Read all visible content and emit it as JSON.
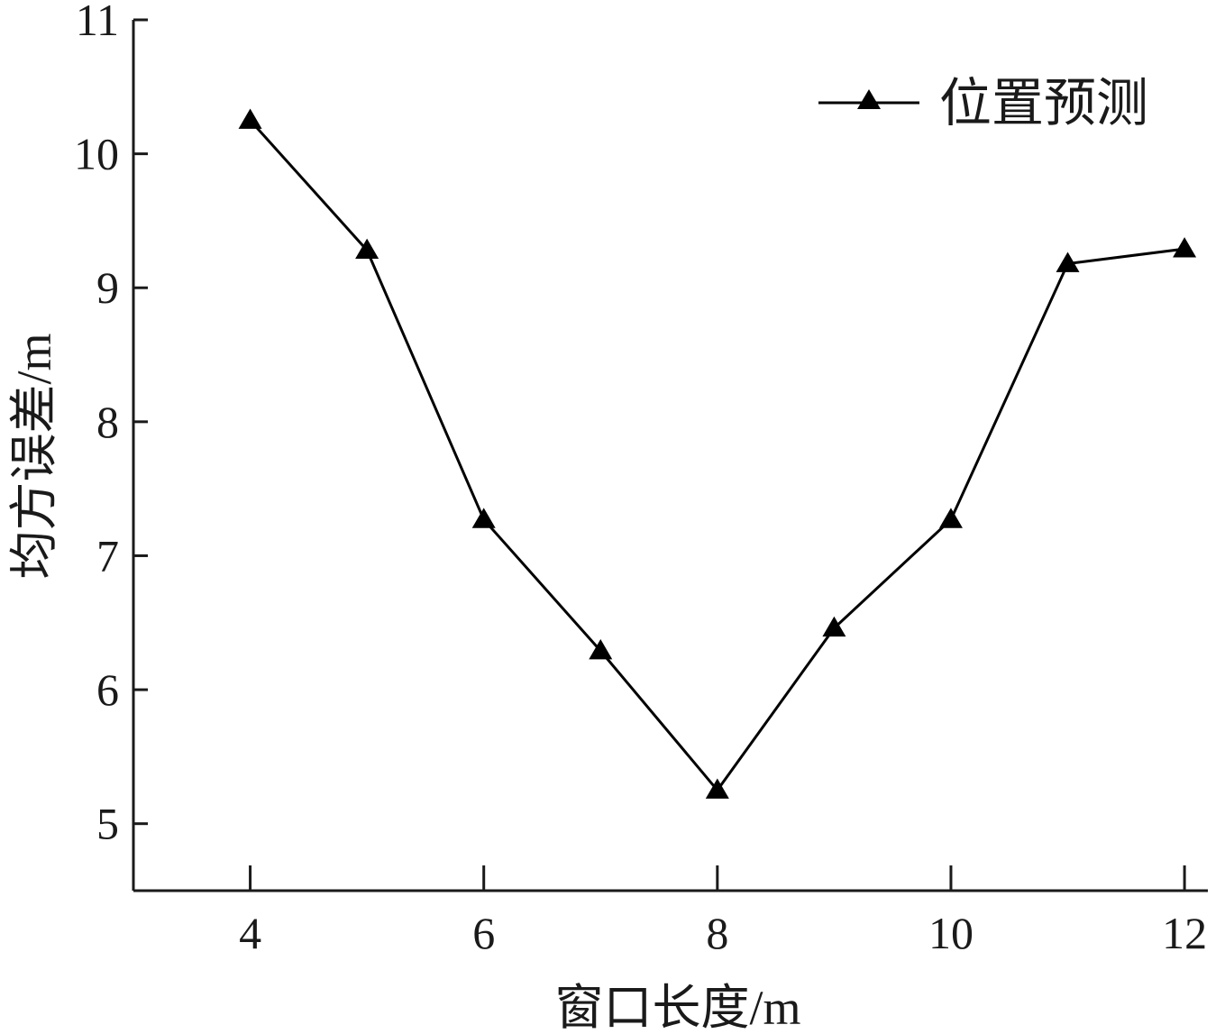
{
  "chart_data": {
    "type": "line",
    "title": "",
    "xlabel": "窗口长度/m",
    "ylabel": "均方误差/m",
    "xlim": [
      3,
      12.2
    ],
    "ylim": [
      4.5,
      11
    ],
    "xticks": [
      4,
      6,
      8,
      10,
      12
    ],
    "yticks": [
      5,
      6,
      7,
      8,
      9,
      10,
      11
    ],
    "xtick_labels": [
      "4",
      "6",
      "8",
      "10",
      "12"
    ],
    "ytick_labels": [
      "5",
      "6",
      "7",
      "8",
      "9",
      "10",
      "11"
    ],
    "grid": false,
    "legend_position": "top-right",
    "series": [
      {
        "name": "位置预测",
        "marker": "triangle",
        "color": "#000000",
        "x": [
          4,
          5,
          6,
          7,
          8,
          9,
          10,
          11,
          12
        ],
        "y": [
          10.25,
          9.28,
          7.27,
          6.29,
          5.25,
          6.46,
          7.27,
          9.18,
          9.29
        ]
      }
    ]
  }
}
